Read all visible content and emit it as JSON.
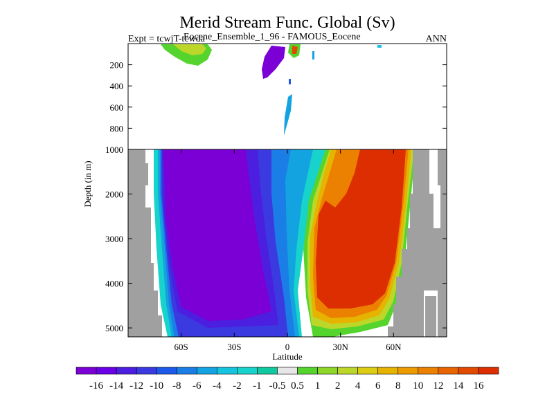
{
  "chart_data": {
    "type": "heatmap",
    "title": "Merid Stream Func. Global (Sv)",
    "experiment": "Expt = tcwjT-tcwda",
    "subtitle": "Eocene_Ensemble_1_96 - FAMOUS_Eocene",
    "season": "ANN",
    "xlabel": "Latitude",
    "ylabel": "Depth (in m)",
    "xlim": [
      -90,
      90
    ],
    "x_ticks": [
      {
        "value": -60,
        "label": "60S"
      },
      {
        "value": -30,
        "label": "30S"
      },
      {
        "value": 0,
        "label": "0"
      },
      {
        "value": 30,
        "label": "30N"
      },
      {
        "value": 60,
        "label": "60N"
      }
    ],
    "upper_panel": {
      "ylim": [
        0,
        1000
      ],
      "y_ticks": [
        200,
        400,
        600,
        800
      ]
    },
    "lower_panel": {
      "ylim": [
        1000,
        5200
      ],
      "y_ticks": [
        1000,
        2000,
        3000,
        4000,
        5000
      ]
    },
    "colorbar": {
      "levels": [
        "-16",
        "-14",
        "-12",
        "-10",
        "-8",
        "-6",
        "-4",
        "-2",
        "-1",
        "-0.5",
        "0.5",
        "1",
        "2",
        "4",
        "6",
        "8",
        "10",
        "12",
        "14",
        "16"
      ],
      "colors": [
        "#7a00d6",
        "#6a00e6",
        "#4c1ee0",
        "#3a3ae0",
        "#1e5aea",
        "#1b7de6",
        "#13a3e0",
        "#16c4e0",
        "#18d2cc",
        "#10c9a0",
        "#e6e6e6",
        "#55d42e",
        "#8ed62a",
        "#bcd72a",
        "#dccc12",
        "#e6b400",
        "#ec9c00",
        "#ec8000",
        "#e86400",
        "#e24a00",
        "#dc2e00"
      ]
    },
    "regions": [
      {
        "name": "south-overturning-cell",
        "value": -18
      },
      {
        "name": "north-overturning-cell",
        "value": 18
      }
    ],
    "land_color": "#a0a0a0"
  }
}
